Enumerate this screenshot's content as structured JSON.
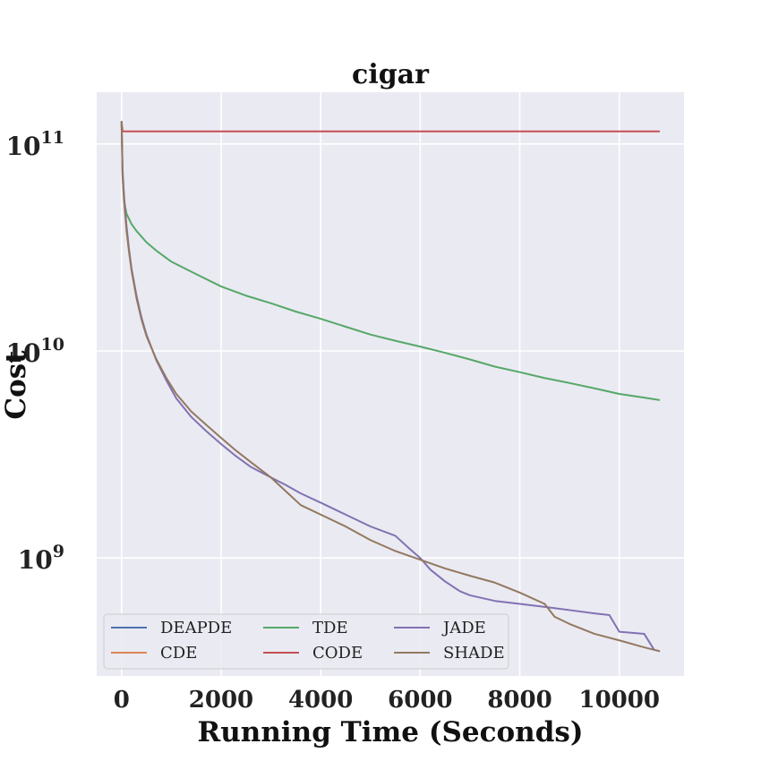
{
  "chart_data": {
    "type": "line",
    "title": "cigar",
    "xlabel": "Running Time (Seconds)",
    "ylabel": "Cost",
    "xscale": "linear",
    "yscale": "log",
    "xlim": [
      -500,
      11300
    ],
    "ylim_exp": [
      8.43,
      11.25
    ],
    "x_ticks": [
      0,
      2000,
      4000,
      6000,
      8000,
      10000
    ],
    "x_tick_labels": [
      "0",
      "2000",
      "4000",
      "6000",
      "8000",
      "10000"
    ],
    "y_tick_exps": [
      9,
      10,
      11
    ],
    "y_tick_base": "10",
    "y_tick_exp_labels": [
      "9",
      "10",
      "11"
    ],
    "grid": true,
    "legend_position": "lower-left",
    "legend_columns": 3,
    "colors": {
      "DEAPDE": "#4c72b0",
      "CDE": "#dd8452",
      "TDE": "#55a868",
      "CODE": "#c44e52",
      "JADE": "#8172b3",
      "SHADE": "#937860"
    },
    "series": [
      {
        "name": "DEAPDE",
        "x": [
          0,
          0
        ],
        "y": [
          120000000000.0,
          120000000000.0
        ]
      },
      {
        "name": "CDE",
        "x": [
          0,
          0
        ],
        "y": [
          120000000000.0,
          120000000000.0
        ]
      },
      {
        "name": "TDE",
        "x": [
          0,
          20,
          50,
          100,
          200,
          300,
          500,
          700,
          1000,
          1500,
          2000,
          2500,
          3000,
          3500,
          4000,
          4500,
          5000,
          5500,
          6000,
          6500,
          7000,
          7500,
          8000,
          8500,
          9000,
          9500,
          10000,
          10500,
          10800
        ],
        "y": [
          125000000000.0,
          70000000000.0,
          53000000000.0,
          46000000000.0,
          41000000000.0,
          38000000000.0,
          33500000000.0,
          30500000000.0,
          27000000000.0,
          23500000000.0,
          20500000000.0,
          18500000000.0,
          17000000000.0,
          15500000000.0,
          14300000000.0,
          13100000000.0,
          12000000000.0,
          11200000000.0,
          10500000000.0,
          9800000000.0,
          9100000000.0,
          8400000000.0,
          7900000000.0,
          7400000000.0,
          7000000000.0,
          6600000000.0,
          6200000000.0,
          5950000000.0,
          5800000000.0
        ]
      },
      {
        "name": "CODE",
        "x": [
          0,
          20,
          40,
          10800
        ],
        "y": [
          128000000000.0,
          115000000000.0,
          115000000000.0,
          115000000000.0
        ]
      },
      {
        "name": "JADE",
        "x": [
          0,
          20,
          50,
          100,
          150,
          200,
          300,
          400,
          500,
          700,
          900,
          1100,
          1400,
          1700,
          2000,
          2300,
          2600,
          3000,
          3300,
          3600,
          4000,
          4500,
          5000,
          5500,
          5800,
          6000,
          6200,
          6500,
          6800,
          7000,
          7500,
          8000,
          8500,
          9000,
          9500,
          9800,
          10000,
          10500,
          10700,
          10800
        ],
        "y": [
          128000000000.0,
          75000000000.0,
          56000000000.0,
          40000000000.0,
          31000000000.0,
          25000000000.0,
          18500000000.0,
          14500000000.0,
          12000000000.0,
          9000000000.0,
          7200000000.0,
          5900000000.0,
          4800000000.0,
          4100000000.0,
          3550000000.0,
          3100000000.0,
          2750000000.0,
          2450000000.0,
          2250000000.0,
          2050000000.0,
          1850000000.0,
          1620000000.0,
          1420000000.0,
          1280000000.0,
          1100000000.0,
          1000000000.0,
          880000000.0,
          770000000.0,
          690000000.0,
          660000000.0,
          620000000.0,
          600000000.0,
          580000000.0,
          560000000.0,
          540000000.0,
          530000000.0,
          440000000.0,
          430000000.0,
          360000000.0,
          355000000.0
        ]
      },
      {
        "name": "SHADE",
        "x": [
          0,
          20,
          50,
          100,
          150,
          200,
          300,
          400,
          500,
          700,
          900,
          1100,
          1400,
          1700,
          2000,
          2300,
          2600,
          3000,
          3300,
          3600,
          4000,
          4500,
          5000,
          5500,
          6000,
          6500,
          7000,
          7500,
          8000,
          8500,
          8700,
          9000,
          9500,
          10000,
          10500,
          10800
        ],
        "y": [
          128000000000.0,
          70000000000.0,
          53000000000.0,
          38000000000.0,
          30000000000.0,
          24500000000.0,
          18000000000.0,
          14200000000.0,
          11800000000.0,
          9100000000.0,
          7400000000.0,
          6200000000.0,
          5100000000.0,
          4400000000.0,
          3800000000.0,
          3300000000.0,
          2900000000.0,
          2450000000.0,
          2100000000.0,
          1800000000.0,
          1620000000.0,
          1420000000.0,
          1220000000.0,
          1080000000.0,
          980000000.0,
          890000000.0,
          820000000.0,
          760000000.0,
          680000000.0,
          600000000.0,
          520000000.0,
          480000000.0,
          430000000.0,
          400000000.0,
          370000000.0,
          355000000.0
        ]
      }
    ]
  }
}
